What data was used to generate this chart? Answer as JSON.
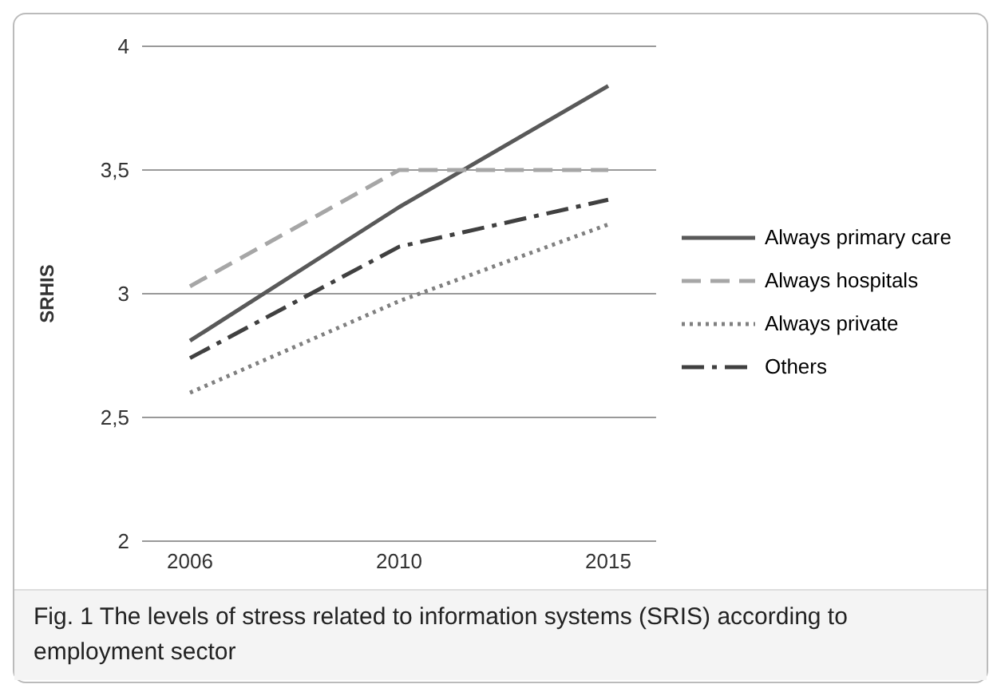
{
  "chart_data": {
    "type": "line",
    "ylabel": "SRHIS",
    "categories": [
      "2006",
      "2010",
      "2015"
    ],
    "series": [
      {
        "name": "Always primary care",
        "color": "#595959",
        "line_style": "solid",
        "values": [
          2.81,
          3.35,
          3.84
        ]
      },
      {
        "name": "Always hospitals",
        "color": "#a6a6a6",
        "line_style": "dashed",
        "values": [
          3.03,
          3.5,
          3.5
        ]
      },
      {
        "name": "Always private",
        "color": "#808080",
        "line_style": "dotted",
        "values": [
          2.6,
          2.97,
          3.28
        ]
      },
      {
        "name": "Others",
        "color": "#404040",
        "line_style": "dashdot",
        "values": [
          2.74,
          3.19,
          3.38
        ]
      }
    ],
    "ylim": [
      2,
      4
    ],
    "yticks": [
      2,
      {
        "value": 2.5,
        "label": "2,5"
      },
      3,
      {
        "value": 3.5,
        "label": "3,5"
      },
      4
    ],
    "grid": "y",
    "legend": "right",
    "marker": "none",
    "annotations": [
      "Fig. 1 The levels of stress related to information systems (SRIS) according to employment sector"
    ]
  }
}
